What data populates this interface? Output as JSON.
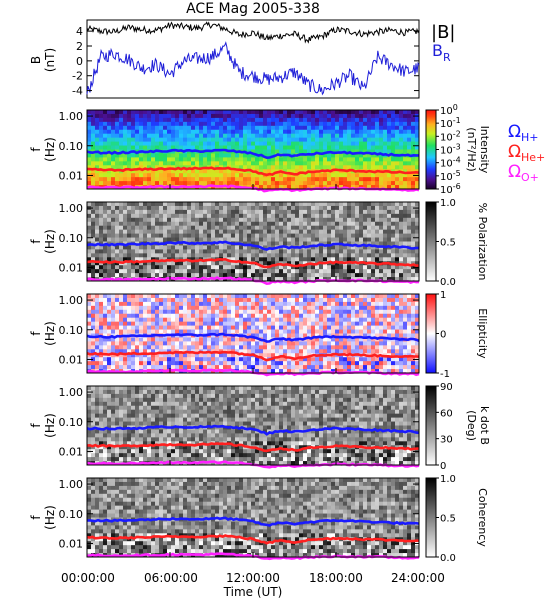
{
  "figure": {
    "title": "ACE Mag 2005-338",
    "x_tick_labels": [
      "00:00:00",
      "06:00:00",
      "12:00:00",
      "18:00:00",
      "24:00:00"
    ],
    "x_axis_label": "Time (UT)"
  },
  "legend": {
    "total_field": "|B|",
    "radial_field": "B",
    "radial_field_subscript": "R",
    "omega_symbol": "Ω",
    "hydrogen_subscript": "H+",
    "helium_subscript": "He+",
    "oxygen_subscript": "O+",
    "colors": {
      "total_field": "#000000",
      "radial_field": "#1f1fd8",
      "hydrogen": "#1a1aff",
      "helium": "#ff2020",
      "oxygen": "#ff20ff"
    }
  },
  "chart_data": [
    {
      "type": "line",
      "panel": "B",
      "ylabel_line1": "B",
      "ylabel_line2": "(nT)",
      "y_tick_labels": [
        "4",
        "2",
        "0",
        "-2",
        "-4"
      ],
      "x_hours": [
        0,
        1,
        2,
        3,
        4,
        5,
        6,
        7,
        8,
        9,
        10,
        11,
        12,
        13,
        14,
        15,
        16,
        17,
        18,
        19,
        20,
        21,
        22,
        23,
        24
      ],
      "ylim": [
        -5,
        5.5
      ],
      "series": [
        {
          "name": "|B|",
          "color": "#000000",
          "values": [
            4.3,
            4.0,
            3.9,
            4.5,
            4.2,
            4.1,
            4.8,
            4.6,
            4.4,
            4.9,
            4.3,
            3.5,
            3.8,
            3.0,
            3.4,
            3.6,
            2.8,
            3.3,
            4.2,
            4.0,
            3.6,
            3.9,
            4.1,
            3.8,
            4.0
          ]
        },
        {
          "name": "B_R",
          "color": "#1f1fd8",
          "values": [
            -4.5,
            0.5,
            1.0,
            0.2,
            -1.0,
            -0.5,
            -1.8,
            0.0,
            0.3,
            0.5,
            1.8,
            -1.5,
            -2.0,
            -2.5,
            -2.2,
            -1.5,
            -3.2,
            -4.0,
            -3.0,
            -2.0,
            -3.8,
            0.5,
            -0.5,
            -1.5,
            -1.0
          ]
        }
      ]
    },
    {
      "type": "heatmap",
      "panel": "power",
      "ylabel_line1": "f",
      "ylabel_line2": "(Hz)",
      "y_tick_labels": [
        "1.00",
        "0.10",
        "0.01"
      ],
      "colorbar_title": "Intensity",
      "colorbar_unit": "(nT²/Hz)",
      "colorbar_ticks": [
        {
          "base": "10",
          "exp": "0"
        },
        {
          "base": "10",
          "exp": "-1"
        },
        {
          "base": "10",
          "exp": "-2"
        },
        {
          "base": "10",
          "exp": "-3"
        },
        {
          "base": "10",
          "exp": "-4"
        },
        {
          "base": "10",
          "exp": "-5"
        },
        {
          "base": "10",
          "exp": "-6"
        }
      ],
      "colorbar_range": [
        1e-06,
        1
      ],
      "color_scale": "rainbow",
      "y_range_hz": [
        0.0035,
        1.6
      ],
      "y_scale": "log"
    },
    {
      "type": "heatmap",
      "panel": "polarization",
      "ylabel_line1": "f",
      "ylabel_line2": "(Hz)",
      "y_tick_labels": [
        "1.00",
        "0.10",
        "0.01"
      ],
      "colorbar_title": "% Polarization",
      "colorbar_ticks": [
        "1.0",
        "0.5",
        "0.0"
      ],
      "colorbar_range": [
        0,
        1
      ],
      "color_scale": "grayscale"
    },
    {
      "type": "heatmap",
      "panel": "ellipticity",
      "ylabel_line1": "f",
      "ylabel_line2": "(Hz)",
      "y_tick_labels": [
        "1.00",
        "0.10",
        "0.01"
      ],
      "colorbar_title": "Ellipticity",
      "colorbar_ticks": [
        "1",
        "0",
        "-1"
      ],
      "colorbar_range": [
        -1,
        1
      ],
      "color_scale": "blue-white-red"
    },
    {
      "type": "heatmap",
      "panel": "kdotb",
      "ylabel_line1": "f",
      "ylabel_line2": "(Hz)",
      "y_tick_labels": [
        "1.00",
        "0.10",
        "0.01"
      ],
      "colorbar_title": "k dot B",
      "colorbar_unit": "(Deg)",
      "colorbar_ticks": [
        "90",
        "60",
        "30",
        "0"
      ],
      "colorbar_range": [
        0,
        90
      ],
      "color_scale": "grayscale"
    },
    {
      "type": "heatmap",
      "panel": "coherency",
      "ylabel_line1": "f",
      "ylabel_line2": "(Hz)",
      "y_tick_labels": [
        "1.00",
        "0.10",
        "0.01"
      ],
      "colorbar_title": "Coherency",
      "colorbar_ticks": [
        "1.0",
        "0.5",
        "0.0"
      ],
      "colorbar_range": [
        0,
        1
      ],
      "color_scale": "grayscale"
    }
  ],
  "gyrofrequency_lines_hz": {
    "x_hours": [
      0,
      2,
      4,
      6,
      8,
      10,
      12,
      13,
      14,
      15,
      16,
      18,
      20,
      22,
      24
    ],
    "H+": [
      0.06,
      0.058,
      0.062,
      0.068,
      0.066,
      0.07,
      0.055,
      0.04,
      0.05,
      0.046,
      0.052,
      0.06,
      0.055,
      0.05,
      0.045
    ],
    "He+": [
      0.016,
      0.015,
      0.016,
      0.017,
      0.017,
      0.018,
      0.014,
      0.01,
      0.013,
      0.011,
      0.013,
      0.015,
      0.014,
      0.013,
      0.012
    ],
    "O+": [
      0.004,
      0.0039,
      0.004,
      0.0042,
      0.0042,
      0.0044,
      0.0037,
      0.003,
      0.0034,
      0.0032,
      0.0034,
      0.0037,
      0.0036,
      0.0034,
      0.0032
    ]
  }
}
